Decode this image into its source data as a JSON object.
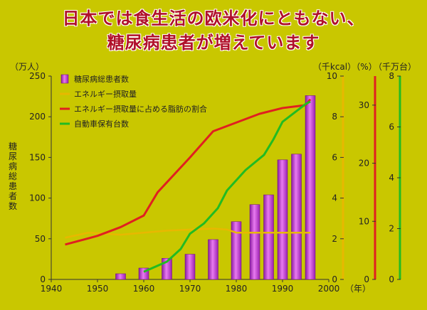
{
  "title_line1": "日本では食生活の欧米化にともない、",
  "title_line2": "糖尿病患者が増えています",
  "chart_data": {
    "type": "bar+line",
    "x_unit": "（年）",
    "x_ticks": [
      1940,
      1950,
      1960,
      1970,
      1980,
      1990,
      2000
    ],
    "xlim": [
      1940,
      2000
    ],
    "axes": {
      "left": {
        "unit": "（万人）",
        "label": "糖尿病総患者数",
        "ylim": [
          0,
          250
        ],
        "ticks": [
          0,
          50,
          100,
          150,
          200,
          250
        ],
        "color": "#222222"
      },
      "kcal": {
        "unit": "（千kcal）",
        "ylim": [
          0,
          10
        ],
        "ticks": [
          0,
          2,
          4,
          6,
          8,
          10
        ],
        "color": "#e8b800"
      },
      "pct": {
        "unit": "（%）",
        "ylim": [
          0,
          35
        ],
        "ticks": [
          0,
          10,
          20,
          30
        ],
        "color": "#e02020"
      },
      "cars": {
        "unit": "（千万台）",
        "ylim": [
          0,
          8
        ],
        "ticks": [
          0,
          2,
          4,
          6,
          8
        ],
        "color": "#22bb22"
      }
    },
    "legend": [
      "糖尿病総患者数",
      "エネルギー摂取量",
      "エネルギー摂取量に占める脂肪の割合",
      "自動車保有台数"
    ],
    "bars": {
      "name": "糖尿病総患者数",
      "axis": "left",
      "color": "#c832d8",
      "x": [
        1955,
        1960,
        1965,
        1970,
        1975,
        1980,
        1984,
        1987,
        1990,
        1993,
        1996
      ],
      "values": [
        7,
        14,
        26,
        31,
        49,
        71,
        92,
        104,
        147,
        154,
        226
      ]
    },
    "lines": [
      {
        "name": "エネルギー摂取量",
        "axis": "kcal",
        "color": "#e8b800",
        "x": [
          1943,
          1948,
          1955,
          1960,
          1965,
          1970,
          1975,
          1978,
          1980,
          1985,
          1990,
          1996
        ],
        "values": [
          2.05,
          2.3,
          2.2,
          2.3,
          2.4,
          2.45,
          2.5,
          2.45,
          2.3,
          2.3,
          2.3,
          2.3
        ]
      },
      {
        "name": "エネルギー摂取量に占める脂肪の割合",
        "axis": "pct",
        "color": "#e02020",
        "x": [
          1943,
          1950,
          1955,
          1960,
          1963,
          1970,
          1975,
          1980,
          1985,
          1990,
          1995,
          1996
        ],
        "values": [
          6,
          7.5,
          9,
          11,
          15,
          21,
          25.5,
          27,
          28.5,
          29.5,
          30,
          31
        ]
      },
      {
        "name": "自動車保有台数",
        "axis": "cars",
        "color": "#22bb22",
        "x": [
          1960,
          1965,
          1968,
          1970,
          1973,
          1976,
          1978,
          1982,
          1986,
          1988,
          1990,
          1995,
          1996
        ],
        "values": [
          0.3,
          0.7,
          1.2,
          1.8,
          2.2,
          2.8,
          3.5,
          4.3,
          4.9,
          5.5,
          6.2,
          6.9,
          7.0
        ]
      }
    ]
  }
}
